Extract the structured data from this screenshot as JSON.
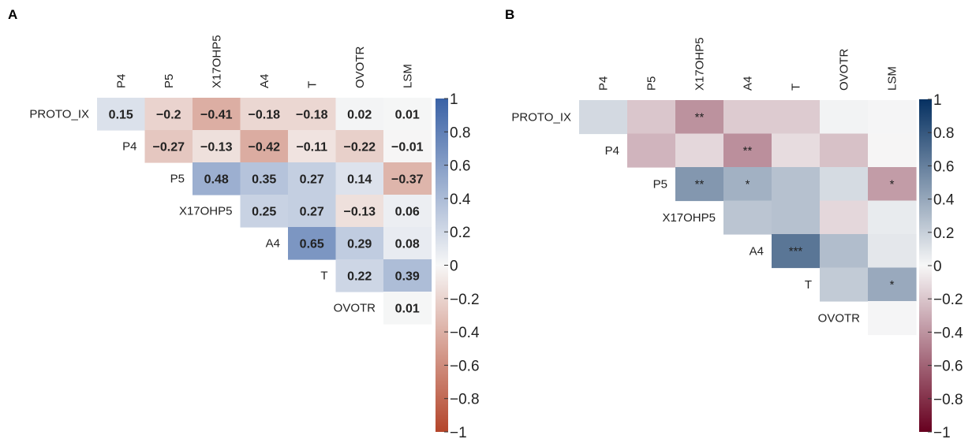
{
  "variables": [
    "PROTO_IX",
    "P4",
    "P5",
    "X17OHP5",
    "A4",
    "T",
    "OVOTR",
    "LSM"
  ],
  "chart_data": [
    {
      "type": "heatmap",
      "panel": "A",
      "row_labels": [
        "PROTO_IX",
        "P4",
        "P5",
        "X17OHP5",
        "A4",
        "T",
        "OVOTR"
      ],
      "col_labels": [
        "P4",
        "P5",
        "X17OHP5",
        "A4",
        "T",
        "OVOTR",
        "LSM"
      ],
      "values": [
        [
          0.15,
          -0.2,
          -0.41,
          -0.18,
          -0.18,
          0.02,
          0.01
        ],
        [
          null,
          -0.27,
          -0.13,
          -0.42,
          -0.11,
          -0.22,
          -0.01
        ],
        [
          null,
          null,
          0.48,
          0.35,
          0.27,
          0.14,
          -0.37
        ],
        [
          null,
          null,
          null,
          0.25,
          0.27,
          -0.13,
          0.06
        ],
        [
          null,
          null,
          null,
          null,
          0.65,
          0.29,
          0.08
        ],
        [
          null,
          null,
          null,
          null,
          null,
          0.22,
          0.39
        ],
        [
          null,
          null,
          null,
          null,
          null,
          null,
          0.01
        ]
      ],
      "cell_labels": [
        [
          "0.15",
          "−0.2",
          "−0.41",
          "−0.18",
          "−0.18",
          "0.02",
          "0.01"
        ],
        [
          "",
          "−0.27",
          "−0.13",
          "−0.42",
          "−0.11",
          "−0.22",
          "−0.01"
        ],
        [
          "",
          "",
          "0.48",
          "0.35",
          "0.27",
          "0.14",
          "−0.37"
        ],
        [
          "",
          "",
          "",
          "0.25",
          "0.27",
          "−0.13",
          "0.06"
        ],
        [
          "",
          "",
          "",
          "",
          "0.65",
          "0.29",
          "0.08"
        ],
        [
          "",
          "",
          "",
          "",
          "",
          "0.22",
          "0.39"
        ],
        [
          "",
          "",
          "",
          "",
          "",
          "",
          "0.01"
        ]
      ],
      "colorbar": {
        "range": [
          -1,
          1
        ],
        "ticks": [
          1,
          0.8,
          0.6,
          0.4,
          0.2,
          0,
          -0.2,
          -0.4,
          -0.6,
          -0.8,
          -1
        ],
        "tick_labels": [
          "1",
          "0.8",
          "0.6",
          "0.4",
          "0.2",
          "0",
          "−0.2",
          "−0.4",
          "−0.6",
          "−0.8",
          "−1"
        ],
        "low_color": "#b4452a",
        "mid_color": "#f7f7f7",
        "high_color": "#3a62a6"
      }
    },
    {
      "type": "heatmap",
      "panel": "B",
      "row_labels": [
        "PROTO_IX",
        "P4",
        "P5",
        "X17OHP5",
        "A4",
        "T",
        "OVOTR"
      ],
      "col_labels": [
        "P4",
        "P5",
        "X17OHP5",
        "A4",
        "T",
        "OVOTR",
        "LSM"
      ],
      "values": [
        [
          0.15,
          -0.2,
          -0.41,
          -0.18,
          -0.18,
          0.02,
          0.01
        ],
        [
          null,
          -0.27,
          -0.13,
          -0.42,
          -0.11,
          -0.22,
          -0.01
        ],
        [
          null,
          null,
          0.48,
          0.35,
          0.27,
          0.14,
          -0.37
        ],
        [
          null,
          null,
          null,
          0.25,
          0.27,
          -0.13,
          0.06
        ],
        [
          null,
          null,
          null,
          null,
          0.65,
          0.29,
          0.08
        ],
        [
          null,
          null,
          null,
          null,
          null,
          0.22,
          0.39
        ],
        [
          null,
          null,
          null,
          null,
          null,
          null,
          0.01
        ]
      ],
      "cell_labels": [
        [
          "",
          "",
          "**",
          "",
          "",
          "",
          ""
        ],
        [
          "",
          "",
          "",
          "**",
          "",
          "",
          ""
        ],
        [
          "",
          "",
          "**",
          "*",
          "",
          "",
          "*"
        ],
        [
          "",
          "",
          "",
          "",
          "",
          "",
          ""
        ],
        [
          "",
          "",
          "",
          "",
          "***",
          "",
          ""
        ],
        [
          "",
          "",
          "",
          "",
          "",
          "",
          "*"
        ],
        [
          "",
          "",
          "",
          "",
          "",
          "",
          ""
        ]
      ],
      "colorbar": {
        "range": [
          -1,
          1
        ],
        "ticks": [
          1,
          0.8,
          0.6,
          0.4,
          0.2,
          0,
          -0.2,
          -0.4,
          -0.6,
          -0.8,
          -1
        ],
        "tick_labels": [
          "1",
          "0.8",
          "0.6",
          "0.4",
          "0.2",
          "0",
          "−0.2",
          "−0.4",
          "−0.6",
          "−0.8",
          "−1"
        ],
        "low_color": "#67001f",
        "mid_color": "#f7f7f7",
        "high_color": "#053061"
      }
    }
  ]
}
